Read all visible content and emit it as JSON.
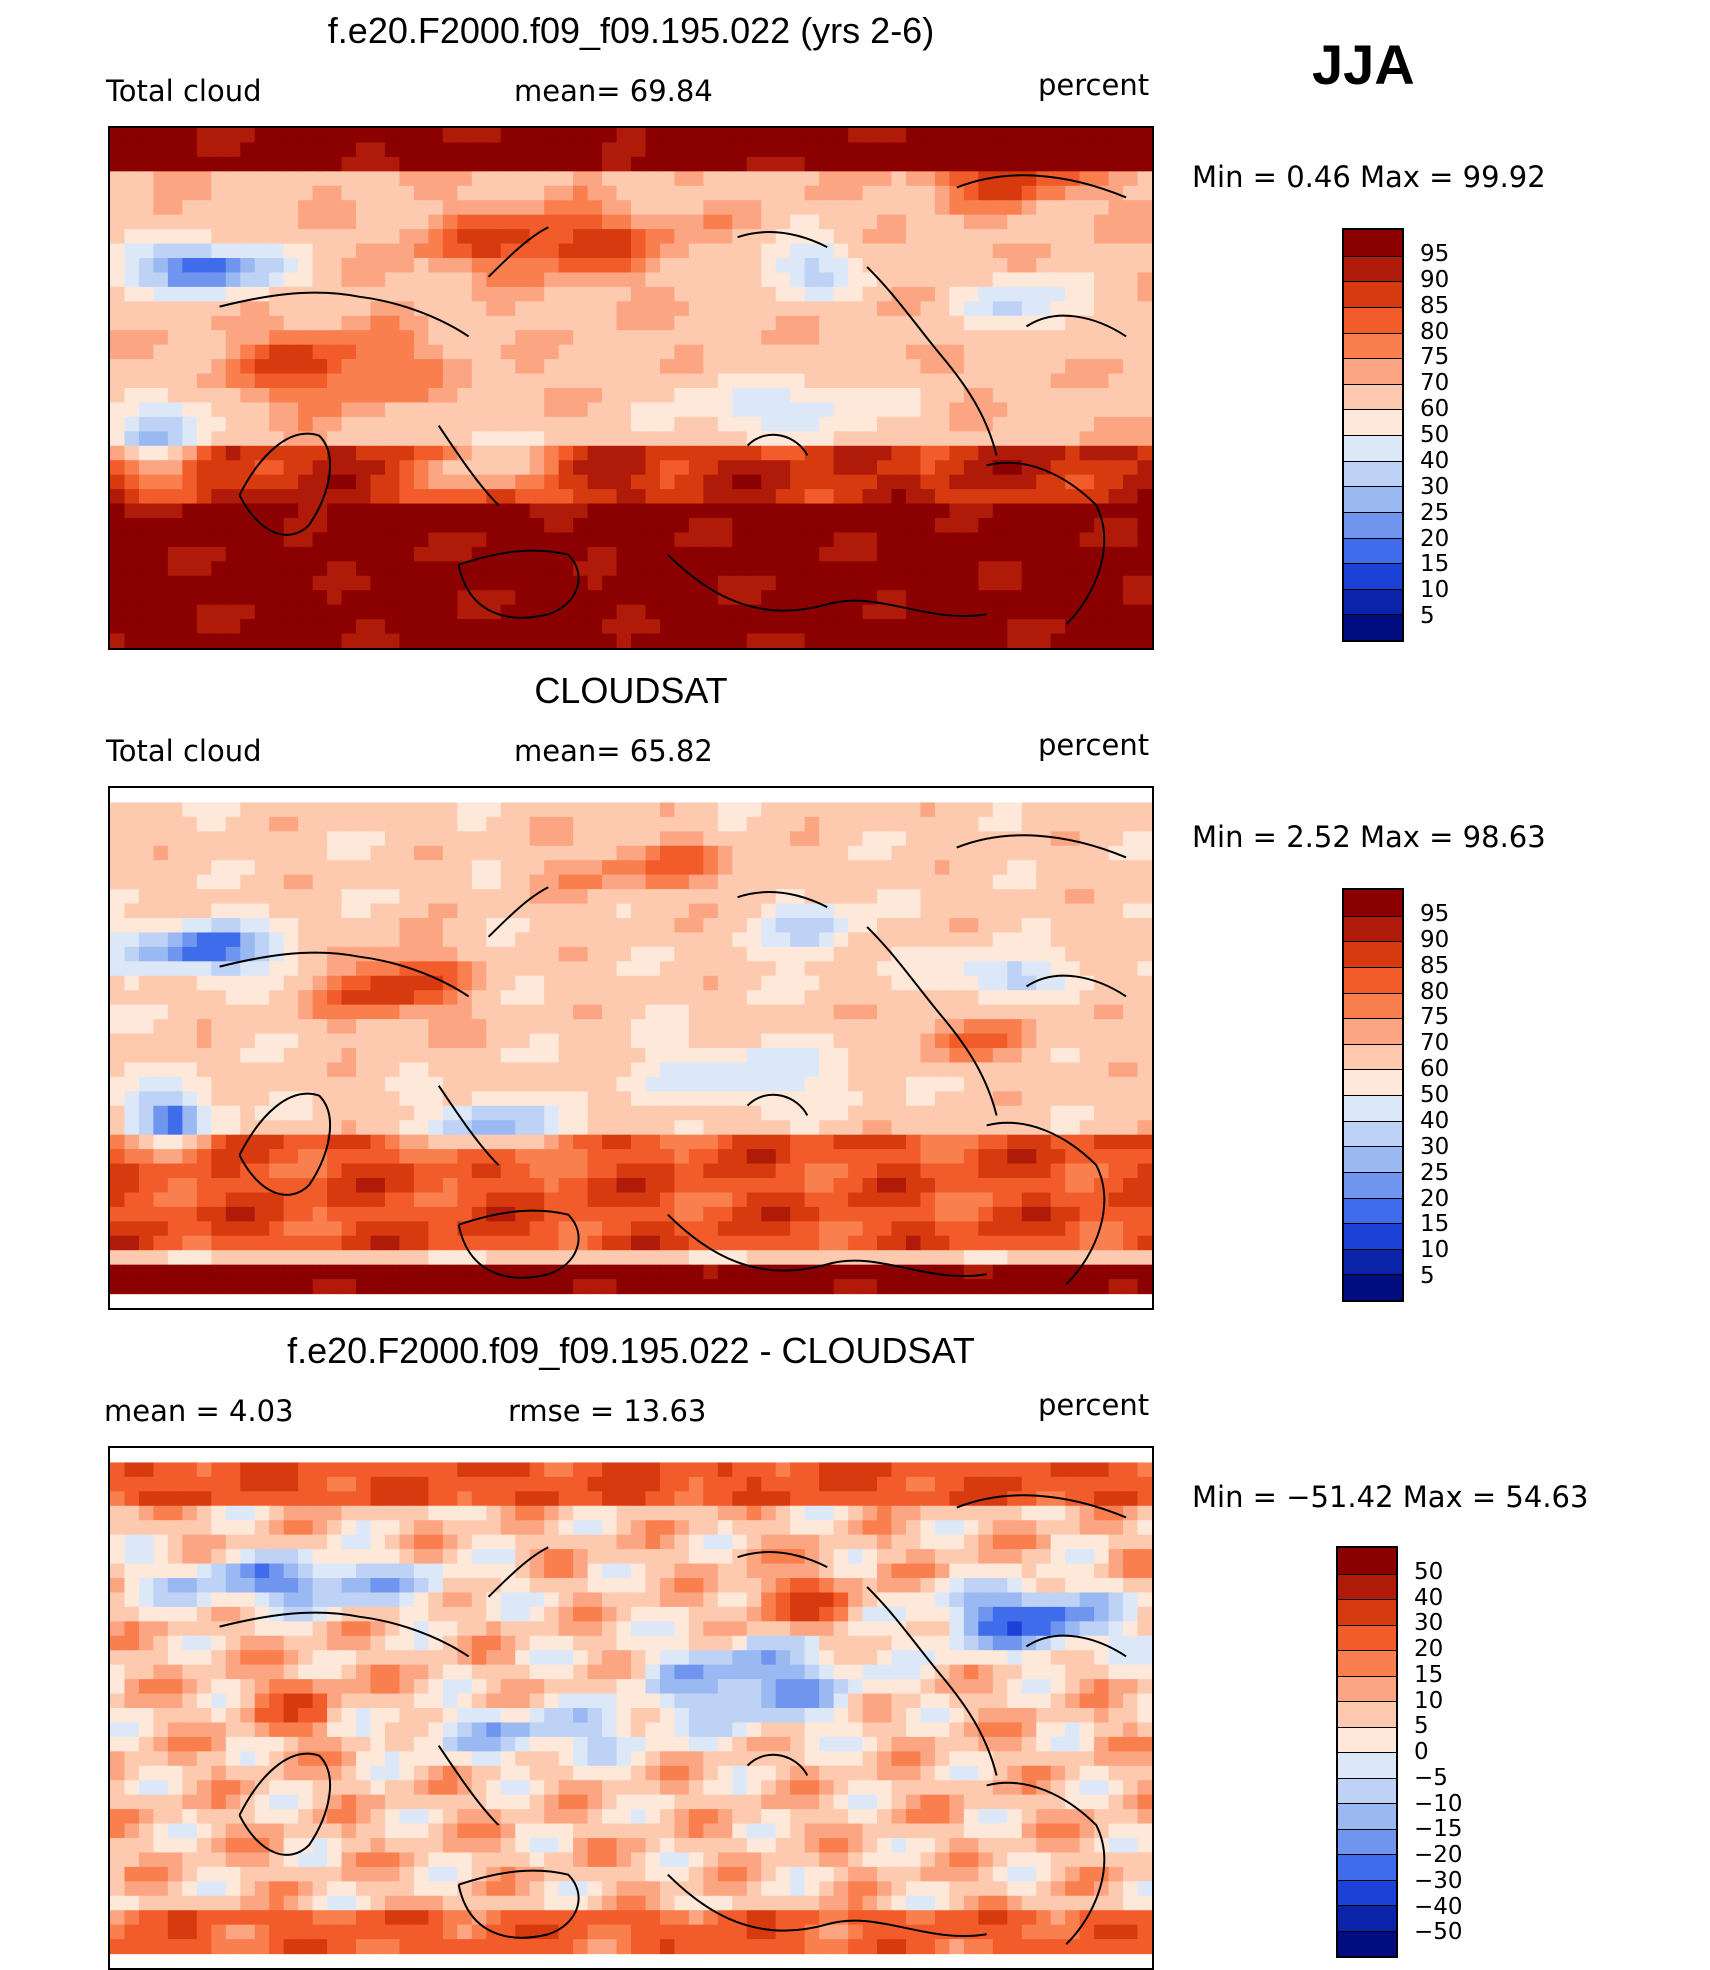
{
  "season": "JJA",
  "chart_data": [
    {
      "type": "heatmap",
      "title": "f.e20.F2000.f09_f09.195.022 (yrs 2-6)",
      "left_label": "Total cloud",
      "stat1": "mean=  69.84",
      "units": "percent",
      "minmax": "Min =    0.46  Max =   99.92",
      "colorbar_labels": [
        "95",
        "90",
        "85",
        "80",
        "75",
        "70",
        "60",
        "50",
        "40",
        "30",
        "25",
        "20",
        "15",
        "10",
        "5"
      ],
      "colorbar_colors": [
        "#8b0000",
        "#b01a08",
        "#d83a10",
        "#f25c2a",
        "#fa7f4e",
        "#fca582",
        "#fdcab0",
        "#fde8da",
        "#dce8f8",
        "#bdd2f5",
        "#9ab8f2",
        "#6f95ef",
        "#3f6cea",
        "#1c41d6",
        "#0a23a8",
        "#000c80"
      ],
      "map_style": "model"
    },
    {
      "type": "heatmap",
      "title": "CLOUDSAT",
      "left_label": "Total cloud",
      "stat1": "mean=  65.82",
      "units": "percent",
      "minmax": "Min =    2.52  Max =   98.63",
      "colorbar_labels": [
        "95",
        "90",
        "85",
        "80",
        "75",
        "70",
        "60",
        "50",
        "40",
        "30",
        "25",
        "20",
        "15",
        "10",
        "5"
      ],
      "colorbar_colors": [
        "#8b0000",
        "#b01a08",
        "#d83a10",
        "#f25c2a",
        "#fa7f4e",
        "#fca582",
        "#fdcab0",
        "#fde8da",
        "#dce8f8",
        "#bdd2f5",
        "#9ab8f2",
        "#6f95ef",
        "#3f6cea",
        "#1c41d6",
        "#0a23a8",
        "#000c80"
      ],
      "map_style": "obs"
    },
    {
      "type": "heatmap",
      "title": "f.e20.F2000.f09_f09.195.022 - CLOUDSAT",
      "left_label": "mean =     4.03",
      "stat1": "rmse  =    13.63",
      "units": "percent",
      "minmax": "Min  = −51.42  Max  =    54.63",
      "colorbar_labels": [
        "50",
        "40",
        "30",
        "20",
        "15",
        "10",
        "5",
        "0",
        "−5",
        "−10",
        "−15",
        "−20",
        "−30",
        "−40",
        "−50"
      ],
      "colorbar_colors": [
        "#8b0000",
        "#b01a08",
        "#d83a10",
        "#f25c2a",
        "#fa7f4e",
        "#fca582",
        "#fdcab0",
        "#fde8da",
        "#dce8f8",
        "#bdd2f5",
        "#9ab8f2",
        "#6f95ef",
        "#3f6cea",
        "#1c41d6",
        "#0a23a8",
        "#000c80"
      ],
      "map_style": "diff"
    }
  ]
}
